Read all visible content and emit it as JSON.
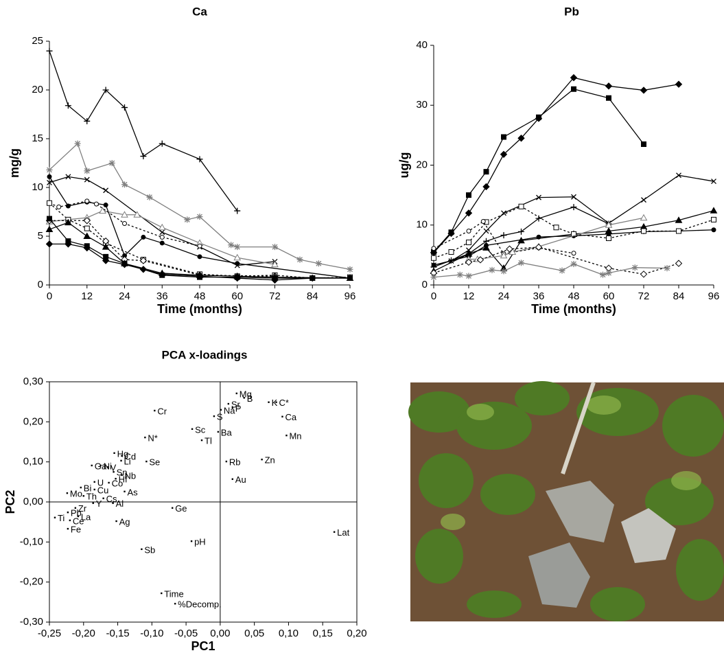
{
  "chart_data": [
    {
      "type": "line",
      "title": "Ca",
      "xlabel": "Time (months)",
      "ylabel": "mg/g",
      "xlim": [
        0,
        96
      ],
      "ylim": [
        0,
        25
      ],
      "xticks": [
        0,
        12,
        24,
        36,
        48,
        60,
        72,
        84,
        96
      ],
      "yticks": [
        0,
        5,
        10,
        15,
        20,
        25
      ],
      "series": [
        {
          "color": "#000000",
          "marker": "plus",
          "dash": false,
          "x": [
            0,
            6,
            12,
            18,
            24,
            30,
            36,
            48,
            60
          ],
          "values": [
            24,
            18.4,
            16.8,
            20,
            18.2,
            13.2,
            14.5,
            12.9,
            7.6
          ]
        },
        {
          "color": "#7f7f7f",
          "marker": "star",
          "dash": false,
          "x": [
            0,
            9,
            12,
            20,
            24,
            32,
            44,
            48,
            58,
            60,
            72,
            80,
            86,
            96
          ],
          "values": [
            11.8,
            14.5,
            11.7,
            12.5,
            10.3,
            9,
            6.7,
            7,
            4.1,
            3.9,
            3.9,
            2.6,
            2.2,
            1.6
          ]
        },
        {
          "color": "#000000",
          "marker": "x",
          "dash": false,
          "x": [
            0,
            6,
            12,
            18,
            36,
            48,
            60,
            72
          ],
          "values": [
            10.5,
            11.1,
            10.8,
            9.7,
            5.4,
            3.9,
            2,
            2.4
          ]
        },
        {
          "color": "#000000",
          "marker": "circle",
          "dash": false,
          "x": [
            0,
            6,
            12,
            18,
            24,
            30,
            36,
            48,
            60,
            96
          ],
          "values": [
            11.1,
            8.1,
            8.5,
            8.2,
            3,
            4.9,
            4.3,
            2.9,
            2.2,
            0.7
          ]
        },
        {
          "color": "#7f7f7f",
          "marker": "triangle-open",
          "dash": false,
          "x": [
            0,
            12,
            17,
            24,
            28,
            36,
            48,
            60,
            72
          ],
          "values": [
            6.5,
            6.9,
            7.6,
            7.2,
            7.2,
            5.9,
            4.3,
            2.8,
            2.1
          ]
        },
        {
          "color": "#000000",
          "marker": "circle-open",
          "dash": true,
          "x": [
            0,
            3,
            12,
            15,
            24,
            36,
            48
          ],
          "values": [
            8.4,
            8,
            8.6,
            8.3,
            6.3,
            4.9,
            4
          ]
        },
        {
          "color": "#000000",
          "marker": "square-open",
          "dash": true,
          "x": [
            0,
            6,
            12,
            18,
            30,
            48,
            60,
            72,
            84,
            96
          ],
          "values": [
            8.4,
            6.7,
            5.8,
            4.3,
            2.6,
            1.1,
            0.9,
            1,
            0.7,
            0.8
          ]
        },
        {
          "color": "#000000",
          "marker": "diamond-open",
          "dash": true,
          "x": [
            0,
            12,
            18,
            24,
            30,
            48,
            72
          ],
          "values": [
            6.6,
            6.6,
            4.5,
            2.6,
            2.5,
            1,
            0.9
          ]
        },
        {
          "color": "#000000",
          "marker": "triangle",
          "dash": false,
          "x": [
            0,
            6,
            12,
            18,
            24,
            36,
            48,
            60,
            72,
            96
          ],
          "values": [
            5.7,
            6.4,
            5,
            3.9,
            2.2,
            1.2,
            1,
            0.9,
            0.8,
            0.7
          ]
        },
        {
          "color": "#000000",
          "marker": "square",
          "dash": false,
          "x": [
            0,
            6,
            12,
            18,
            24,
            36,
            48,
            60,
            72,
            84,
            96
          ],
          "values": [
            6.8,
            4.5,
            4,
            2.9,
            2.2,
            1,
            0.8,
            0.8,
            0.7,
            0.7,
            0.7
          ]
        },
        {
          "color": "#000000",
          "marker": "diamond",
          "dash": false,
          "x": [
            0,
            6,
            12,
            18,
            24,
            30,
            36,
            48,
            60,
            72,
            84
          ],
          "values": [
            4.2,
            4.2,
            3.8,
            2.5,
            2.1,
            1.6,
            1.1,
            0.9,
            0.7,
            0.5,
            0.7
          ]
        }
      ]
    },
    {
      "type": "line",
      "title": "Pb",
      "xlabel": "Time (months)",
      "ylabel": "ug/g",
      "xlim": [
        0,
        96
      ],
      "ylim": [
        0,
        40
      ],
      "xticks": [
        0,
        12,
        24,
        36,
        48,
        60,
        72,
        84,
        96
      ],
      "yticks": [
        0,
        10,
        20,
        30,
        40
      ],
      "series": [
        {
          "color": "#000000",
          "marker": "diamond",
          "dash": false,
          "x": [
            0,
            6,
            12,
            18,
            24,
            30,
            36,
            48,
            60,
            72,
            84
          ],
          "values": [
            5.4,
            8.6,
            12,
            16.4,
            21.8,
            24.5,
            27.8,
            34.6,
            33.2,
            32.5,
            33.5
          ]
        },
        {
          "color": "#000000",
          "marker": "square",
          "dash": false,
          "x": [
            0,
            6,
            12,
            18,
            24,
            36,
            48,
            60,
            72
          ],
          "values": [
            5.5,
            8.8,
            15,
            18.9,
            24.7,
            28,
            32.7,
            31.2,
            23.5
          ]
        },
        {
          "color": "#000000",
          "marker": "x",
          "dash": false,
          "x": [
            0,
            6,
            12,
            18,
            24,
            36,
            48,
            60,
            72,
            84,
            96
          ],
          "values": [
            3.3,
            4,
            5.8,
            9,
            12,
            14.6,
            14.7,
            10.3,
            14.2,
            18.3,
            17.3
          ]
        },
        {
          "color": "#000000",
          "marker": "plus",
          "dash": false,
          "x": [
            0,
            6,
            12,
            18,
            24,
            30,
            36,
            48,
            60
          ],
          "values": [
            3,
            4.1,
            5.2,
            7.3,
            8.3,
            8.9,
            11.1,
            13,
            10.2
          ]
        },
        {
          "color": "#000000",
          "marker": "triangle",
          "dash": false,
          "x": [
            0,
            12,
            18,
            24,
            30,
            48,
            60,
            72,
            84,
            96
          ],
          "values": [
            2.3,
            5.2,
            6.2,
            2.8,
            7.4,
            8.5,
            9,
            9.7,
            10.8,
            12.4
          ]
        },
        {
          "color": "#000000",
          "marker": "circle",
          "dash": false,
          "x": [
            0,
            12,
            18,
            36,
            48,
            60,
            72,
            84,
            96
          ],
          "values": [
            3.3,
            4.8,
            6.6,
            8,
            8.2,
            8.5,
            8.9,
            9,
            9.2
          ]
        },
        {
          "color": "#000000",
          "marker": "square-open",
          "dash": true,
          "x": [
            0,
            6,
            12,
            18,
            30,
            42,
            48,
            60,
            72,
            84,
            96
          ],
          "values": [
            4.5,
            5.5,
            7.1,
            10.5,
            13.1,
            9.6,
            8.5,
            7.8,
            9,
            9,
            10.9
          ]
        },
        {
          "color": "#000000",
          "marker": "circle-open",
          "dash": true,
          "x": [
            0,
            12,
            17,
            24,
            36,
            48
          ],
          "values": [
            6.1,
            9,
            10.6,
            5.2,
            6.2,
            5.3
          ]
        },
        {
          "color": "#7f7f7f",
          "marker": "triangle-open",
          "dash": false,
          "x": [
            12,
            15,
            24,
            27,
            36,
            60,
            72
          ],
          "values": [
            4.3,
            4.3,
            4.9,
            5.5,
            6.4,
            10,
            11.2
          ]
        },
        {
          "color": "#000000",
          "marker": "diamond-open",
          "dash": true,
          "x": [
            0,
            12,
            16,
            26,
            36,
            60,
            72,
            84
          ],
          "values": [
            2,
            3.8,
            4.2,
            6,
            6.3,
            2.8,
            1.8,
            3.6
          ]
        },
        {
          "color": "#7f7f7f",
          "marker": "star",
          "dash": false,
          "x": [
            0,
            9,
            12,
            20,
            24,
            30,
            44,
            48,
            58,
            60,
            69,
            80
          ],
          "values": [
            1.3,
            1.7,
            1.5,
            2.5,
            2.3,
            3.7,
            2.4,
            3.5,
            1.7,
            2,
            2.9,
            2.8
          ]
        }
      ]
    },
    {
      "type": "scatter",
      "title": "PCA x-loadings",
      "xlabel": "PC1",
      "ylabel": "PC2",
      "color": "#000000",
      "zero_lines": true,
      "xlim": [
        -0.25,
        0.2
      ],
      "ylim": [
        -0.3,
        0.3
      ],
      "xticks": [
        {
          "value": -0.25,
          "label": "-0,25"
        },
        {
          "value": -0.2,
          "label": "-0,20"
        },
        {
          "value": -0.15,
          "label": "-0,15"
        },
        {
          "value": -0.1,
          "label": "-0,10"
        },
        {
          "value": -0.05,
          "label": "-0,05"
        },
        {
          "value": 0,
          "label": "0,00"
        },
        {
          "value": 0.05,
          "label": "0,05"
        },
        {
          "value": 0.1,
          "label": "0,10"
        },
        {
          "value": 0.15,
          "label": "0,15"
        },
        {
          "value": 0.2,
          "label": "0,20"
        }
      ],
      "yticks": [
        {
          "value": -0.3,
          "label": "-0,30"
        },
        {
          "value": -0.2,
          "label": "-0,20"
        },
        {
          "value": -0.1,
          "label": "-0,10"
        },
        {
          "value": 0,
          "label": "0,00"
        },
        {
          "value": 0.1,
          "label": "0,10"
        },
        {
          "value": 0.2,
          "label": "0,20"
        },
        {
          "value": 0.3,
          "label": "0,30"
        }
      ],
      "labels": [
        "Mg",
        "Sr",
        "B",
        "Na",
        "P",
        "S",
        "K",
        "C*",
        "Ca",
        "Mn",
        "Cr",
        "Sc",
        "Tl",
        "Ba",
        "N*",
        "Hg",
        "Cd",
        "Li",
        "Se",
        "Ga",
        "Ni",
        "V",
        "Sn",
        "Hf",
        "Nb",
        "U",
        "Co",
        "Bi",
        "Cu",
        "As",
        "Mo",
        "Th",
        "Cs",
        "Al",
        "Y",
        "Zr",
        "Pb",
        "La",
        "Ti",
        "Ce",
        "Fe",
        "Ag",
        "Ge",
        "Rb",
        "Zn",
        "Au",
        "Lat",
        "pH",
        "Sb",
        "Time",
        "%Decomp."
      ],
      "x": [
        0.024,
        0.012,
        0.035,
        0.001,
        0.018,
        -0.009,
        0.071,
        0.082,
        0.091,
        0.097,
        -0.096,
        -0.041,
        -0.027,
        -0.003,
        -0.11,
        -0.155,
        -0.144,
        -0.145,
        -0.108,
        -0.188,
        -0.175,
        -0.165,
        -0.156,
        -0.153,
        -0.144,
        -0.184,
        -0.163,
        -0.204,
        -0.184,
        -0.14,
        -0.224,
        -0.2,
        -0.171,
        -0.157,
        -0.186,
        -0.212,
        -0.223,
        -0.208,
        -0.242,
        -0.22,
        -0.223,
        -0.152,
        -0.07,
        0.009,
        0.061,
        0.018,
        0.167,
        -0.042,
        -0.115,
        -0.086,
        -0.066
      ],
      "values": [
        0.271,
        0.245,
        0.26,
        0.23,
        0.235,
        0.214,
        0.249,
        0.249,
        0.213,
        0.166,
        0.228,
        0.182,
        0.154,
        0.175,
        0.161,
        0.122,
        0.115,
        0.103,
        0.101,
        0.091,
        0.091,
        0.087,
        0.075,
        0.058,
        0.067,
        0.05,
        0.048,
        0.036,
        0.031,
        0.026,
        0.022,
        0.015,
        0.009,
        -0.003,
        -0.003,
        -0.015,
        -0.026,
        -0.036,
        -0.039,
        -0.046,
        -0.067,
        -0.048,
        -0.015,
        0.101,
        0.106,
        0.057,
        -0.075,
        -0.098,
        -0.118,
        -0.228,
        -0.254
      ]
    }
  ]
}
